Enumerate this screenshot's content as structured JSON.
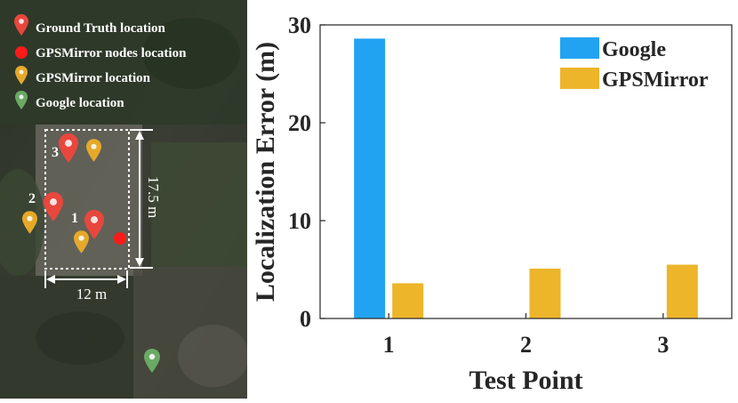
{
  "map": {
    "legend": [
      {
        "label": "Ground Truth location",
        "icon": "red-pin-icon",
        "color": "#e8473d"
      },
      {
        "label": "GPSMirror nodes location",
        "icon": "red-dot-icon",
        "color": "#ff1a1a"
      },
      {
        "label": "GPSMirror location",
        "icon": "yellow-pin-icon",
        "color": "#e5a92a"
      },
      {
        "label": "Google location",
        "icon": "green-pin-icon",
        "color": "#6aaa64"
      }
    ],
    "dim_height": "17.5 m",
    "dim_width": "12 m",
    "points": [
      "1",
      "2",
      "3"
    ]
  },
  "chart_data": {
    "type": "bar",
    "categories": [
      "1",
      "2",
      "3"
    ],
    "series": [
      {
        "name": "Google",
        "values": [
          28.6,
          null,
          null
        ],
        "color": "#21a3f2"
      },
      {
        "name": "GPSMirror",
        "values": [
          3.6,
          5.1,
          5.5
        ],
        "color": "#ecb52a"
      }
    ],
    "xlabel": "Test Point",
    "ylabel": "Localization Error (m)",
    "ylim": [
      0,
      30
    ],
    "yticks": [
      0,
      10,
      20,
      30
    ],
    "grid": false,
    "legend_position": "top-right"
  }
}
